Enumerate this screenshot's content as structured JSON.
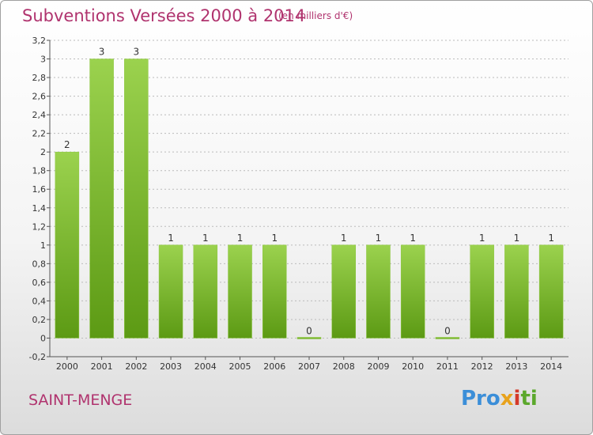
{
  "page": {
    "commune": "SAINT-MENGE",
    "logo": {
      "p1": "Pro",
      "p2": "x",
      "p3": "i",
      "p4": "ti"
    }
  },
  "colors": {
    "title": "#b0336e",
    "bar_light": "#9bd24e",
    "bar_dark": "#5c9a14",
    "grid": "#bbbbbb"
  },
  "chart_data": {
    "type": "bar",
    "title": "Subventions Versées 2000 à 2014",
    "subtitle": "(en milliers d'€)",
    "categories": [
      "2000",
      "2001",
      "2002",
      "2003",
      "2004",
      "2005",
      "2006",
      "2007",
      "2008",
      "2009",
      "2010",
      "2011",
      "2012",
      "2013",
      "2014"
    ],
    "values": [
      2,
      3,
      3,
      1,
      1,
      1,
      1,
      0,
      1,
      1,
      1,
      0,
      1,
      1,
      1
    ],
    "data_labels": [
      "2",
      "3",
      "3",
      "1",
      "1",
      "1",
      "1",
      "0",
      "1",
      "1",
      "1",
      "0",
      "1",
      "1",
      "1"
    ],
    "ylim": [
      -0.2,
      3.2
    ],
    "yticks": [
      -0.2,
      0,
      0.2,
      0.4,
      0.6,
      0.8,
      1,
      1.2,
      1.4,
      1.6,
      1.8,
      2,
      2.2,
      2.4,
      2.6,
      2.8,
      3,
      3.2
    ],
    "ytick_labels": [
      "-0,2",
      "0",
      "0,2",
      "0,4",
      "0,6",
      "0,8",
      "1",
      "1,2",
      "1,4",
      "1,6",
      "1,8",
      "2",
      "2,2",
      "2,4",
      "2,6",
      "2,8",
      "3",
      "3,2"
    ],
    "grid": "horizontal dashed",
    "xlabel": "",
    "ylabel": ""
  }
}
